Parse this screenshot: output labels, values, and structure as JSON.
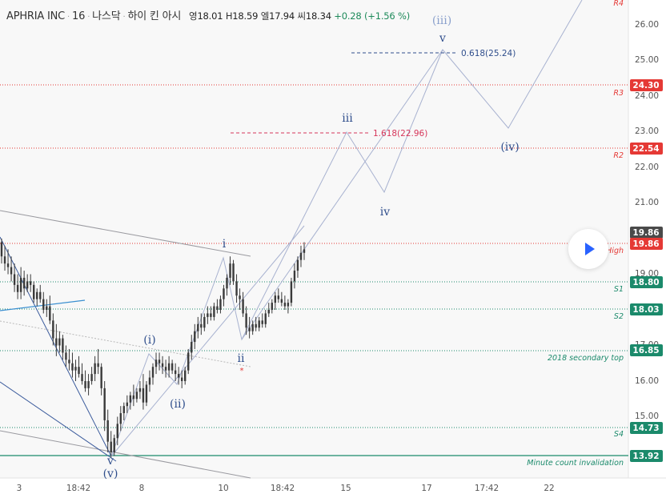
{
  "header": {
    "symbol": "APHRIA INC",
    "interval": "16",
    "exchange": "나스닥",
    "source": "하이 킨 아시",
    "open_label": "영",
    "open": "18.01",
    "high_label": "H",
    "high": "18.59",
    "low_label": "엘",
    "low": "17.94",
    "close_label": "씨",
    "close": "18.34",
    "change": "+0.28",
    "change_pct": "(+1.56 %)"
  },
  "colors": {
    "background": "#f8f8f8",
    "candle": "#3a3a3a",
    "resistance": "#e53935",
    "support": "#1b8a6b",
    "wave_label": "#2f4e8c",
    "fib_red": "#d6365a",
    "fib_blue": "#2f4e8c",
    "projection": "#a8b2d0"
  },
  "chart_data": {
    "type": "candlestick",
    "title": "APHRIA INC · 16 · 나스닥 · 하이 킨 아시",
    "ylim": [
      13.6,
      26.5
    ],
    "y_ticks": [
      "15.00",
      "16.00",
      "17.00",
      "19.00",
      "20.00",
      "21.00",
      "22.00",
      "23.00",
      "24.00",
      "25.00",
      "26.00"
    ],
    "x_ticks": [
      "3",
      "18:42",
      "8",
      "10",
      "18:42",
      "15",
      "17",
      "17:42",
      "22"
    ],
    "price_levels": [
      {
        "label": "R3",
        "value": 24.3,
        "value_text": "24.30",
        "kind": "resistance"
      },
      {
        "label": "R2",
        "value": 22.54,
        "value_text": "22.54",
        "kind": "resistance"
      },
      {
        "label": "High",
        "value": 19.86,
        "value_text": "19.86",
        "kind": "resistance"
      },
      {
        "label": "S1",
        "value": 18.8,
        "value_text": "18.80",
        "kind": "support"
      },
      {
        "label": "S2",
        "value": 18.03,
        "value_text": "18.03",
        "kind": "support"
      },
      {
        "label": "2018 secondary top",
        "value": 16.85,
        "value_text": "16.85",
        "kind": "support"
      },
      {
        "label": "S4",
        "value": 14.73,
        "value_text": "14.73",
        "kind": "support"
      },
      {
        "label": "Minute count invalidation",
        "value": 13.92,
        "value_text": "13.92",
        "kind": "support"
      }
    ],
    "r4_label": "R4",
    "last_price_tag": "19.86",
    "fib_levels": [
      {
        "label": "1.618(22.96)",
        "value": 22.96
      },
      {
        "label": "0.618(25.24)",
        "value": 25.24
      }
    ],
    "wave_labels": [
      "v",
      "(v)",
      "(i)",
      "(ii)",
      "i",
      "ii",
      "iii",
      "iv",
      "(iii)",
      "v",
      "(iv)"
    ],
    "candles_ohlc": [
      [
        19.9,
        20.0,
        19.3,
        19.5
      ],
      [
        19.5,
        19.8,
        19.1,
        19.3
      ],
      [
        19.3,
        19.7,
        19.0,
        19.2
      ],
      [
        19.2,
        19.5,
        18.8,
        19.0
      ],
      [
        19.0,
        19.3,
        18.5,
        18.7
      ],
      [
        18.7,
        19.0,
        18.3,
        18.5
      ],
      [
        18.5,
        19.2,
        18.3,
        18.9
      ],
      [
        18.9,
        19.1,
        18.4,
        18.6
      ],
      [
        18.6,
        19.0,
        18.5,
        18.8
      ],
      [
        18.8,
        19.0,
        18.5,
        18.7
      ],
      [
        18.7,
        18.8,
        18.2,
        18.3
      ],
      [
        18.3,
        18.6,
        18.1,
        18.5
      ],
      [
        18.5,
        18.7,
        18.2,
        18.3
      ],
      [
        18.3,
        18.5,
        17.9,
        18.0
      ],
      [
        18.0,
        18.3,
        17.8,
        18.1
      ],
      [
        18.1,
        18.4,
        17.6,
        17.7
      ],
      [
        17.7,
        17.9,
        17.0,
        17.2
      ],
      [
        17.2,
        17.6,
        16.7,
        17.0
      ],
      [
        17.0,
        17.4,
        16.8,
        17.2
      ],
      [
        17.2,
        17.3,
        16.6,
        16.8
      ],
      [
        16.8,
        17.0,
        16.4,
        16.6
      ],
      [
        16.6,
        16.9,
        16.3,
        16.5
      ],
      [
        16.5,
        16.8,
        16.1,
        16.3
      ],
      [
        16.3,
        16.6,
        16.0,
        16.4
      ],
      [
        16.4,
        16.7,
        16.1,
        16.2
      ],
      [
        16.2,
        16.5,
        15.9,
        16.0
      ],
      [
        16.0,
        16.3,
        15.7,
        15.8
      ],
      [
        15.8,
        16.2,
        15.6,
        16.0
      ],
      [
        16.0,
        16.4,
        15.9,
        16.2
      ],
      [
        16.2,
        16.7,
        16.0,
        16.5
      ],
      [
        16.5,
        16.9,
        16.2,
        16.4
      ],
      [
        16.4,
        16.5,
        15.6,
        15.8
      ],
      [
        15.8,
        16.0,
        14.6,
        14.9
      ],
      [
        14.9,
        15.2,
        14.0,
        14.3
      ],
      [
        14.3,
        14.6,
        13.85,
        14.0
      ],
      [
        14.0,
        14.5,
        13.9,
        14.4
      ],
      [
        14.4,
        15.0,
        14.2,
        14.8
      ],
      [
        14.8,
        15.3,
        14.6,
        15.1
      ],
      [
        15.1,
        15.4,
        14.9,
        15.3
      ],
      [
        15.3,
        15.6,
        15.1,
        15.4
      ],
      [
        15.4,
        15.7,
        15.2,
        15.6
      ],
      [
        15.6,
        15.9,
        15.3,
        15.5
      ],
      [
        15.5,
        15.8,
        15.4,
        15.7
      ],
      [
        15.7,
        16.0,
        15.5,
        15.8
      ],
      [
        15.8,
        16.2,
        15.2,
        15.4
      ],
      [
        15.4,
        16.0,
        15.3,
        15.9
      ],
      [
        15.9,
        16.3,
        15.7,
        16.1
      ],
      [
        16.1,
        16.5,
        15.9,
        16.4
      ],
      [
        16.4,
        16.8,
        16.2,
        16.6
      ],
      [
        16.6,
        16.8,
        16.3,
        16.5
      ],
      [
        16.5,
        16.7,
        16.2,
        16.4
      ],
      [
        16.4,
        16.6,
        16.1,
        16.3
      ],
      [
        16.3,
        16.7,
        16.1,
        16.5
      ],
      [
        16.5,
        16.6,
        16.2,
        16.3
      ],
      [
        16.3,
        16.5,
        16.0,
        16.2
      ],
      [
        16.2,
        16.4,
        15.9,
        16.1
      ],
      [
        16.1,
        16.3,
        15.8,
        16.0
      ],
      [
        16.0,
        16.4,
        15.9,
        16.3
      ],
      [
        16.3,
        16.9,
        16.2,
        16.8
      ],
      [
        16.8,
        17.3,
        16.6,
        17.1
      ],
      [
        17.1,
        17.6,
        16.9,
        17.4
      ],
      [
        17.4,
        17.8,
        17.2,
        17.6
      ],
      [
        17.6,
        17.9,
        17.3,
        17.5
      ],
      [
        17.5,
        17.9,
        17.4,
        17.8
      ],
      [
        17.8,
        18.1,
        17.6,
        17.9
      ],
      [
        17.9,
        18.1,
        17.7,
        17.8
      ],
      [
        17.8,
        18.2,
        17.7,
        18.1
      ],
      [
        18.1,
        18.3,
        17.9,
        18.0
      ],
      [
        18.0,
        18.4,
        17.9,
        18.3
      ],
      [
        18.3,
        18.7,
        18.1,
        18.6
      ],
      [
        18.6,
        19.0,
        18.4,
        18.9
      ],
      [
        18.9,
        19.5,
        18.7,
        19.3
      ],
      [
        19.3,
        19.4,
        18.7,
        18.8
      ],
      [
        18.8,
        19.0,
        18.2,
        18.4
      ],
      [
        18.4,
        18.6,
        18.0,
        18.3
      ],
      [
        18.3,
        18.5,
        17.8,
        17.9
      ],
      [
        17.9,
        18.1,
        17.3,
        17.5
      ],
      [
        17.5,
        17.8,
        17.2,
        17.4
      ],
      [
        17.4,
        17.7,
        17.3,
        17.6
      ],
      [
        17.6,
        17.8,
        17.4,
        17.5
      ],
      [
        17.5,
        17.8,
        17.4,
        17.7
      ],
      [
        17.7,
        17.9,
        17.5,
        17.6
      ],
      [
        17.6,
        18.0,
        17.5,
        17.9
      ],
      [
        17.9,
        18.2,
        17.8,
        18.0
      ],
      [
        18.0,
        18.3,
        17.9,
        18.2
      ],
      [
        18.2,
        18.5,
        18.0,
        18.4
      ],
      [
        18.4,
        18.6,
        18.2,
        18.3
      ],
      [
        18.3,
        18.5,
        18.1,
        18.2
      ],
      [
        18.2,
        18.4,
        18.0,
        18.1
      ],
      [
        18.1,
        18.3,
        17.9,
        18.2
      ],
      [
        18.2,
        18.9,
        18.1,
        18.8
      ],
      [
        18.8,
        19.3,
        18.6,
        19.1
      ],
      [
        19.1,
        19.5,
        18.9,
        19.4
      ],
      [
        19.4,
        19.8,
        19.2,
        19.6
      ],
      [
        19.6,
        19.9,
        19.4,
        19.7
      ]
    ]
  },
  "play_button": {
    "icon": "play-icon"
  }
}
